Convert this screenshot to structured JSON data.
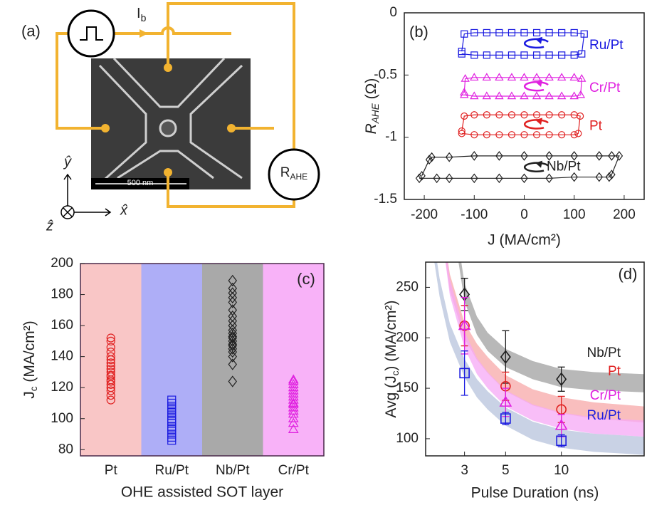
{
  "diagram": {
    "panel_label": "(a)",
    "current": {
      "main": "I",
      "sub": "b"
    },
    "resistor": {
      "main": "R",
      "sub": "AHE"
    },
    "scale_bar": "500 nm",
    "axes": {
      "y": "ŷ",
      "x": "x̂",
      "z": "ẑ"
    }
  },
  "chart_data": [
    {
      "type": "line",
      "panel_label": "(b)",
      "y_label": {
        "main": "R",
        "sub": "AHE",
        "rest": " (Ω)"
      },
      "x_label": "J (MA/cm²)",
      "xlim": [
        -240,
        240
      ],
      "xticks": [
        -200,
        -100,
        0,
        100,
        200
      ],
      "ylim": [
        -1.5,
        0
      ],
      "yticks": [
        -1.5,
        -1,
        -0.5,
        0
      ],
      "series": [
        {
          "name": "Ru/Pt",
          "color": "#1a1ae0",
          "marker": "square",
          "x": [
            -125,
            -100,
            -75,
            -50,
            -25,
            0,
            25,
            50,
            75,
            100,
            115,
            120,
            100,
            75,
            50,
            25,
            0,
            -25,
            -50,
            -75,
            -100,
            -120,
            -125
          ],
          "values": [
            -0.33,
            -0.34,
            -0.34,
            -0.34,
            -0.34,
            -0.34,
            -0.34,
            -0.34,
            -0.34,
            -0.34,
            -0.33,
            -0.17,
            -0.16,
            -0.16,
            -0.16,
            -0.16,
            -0.16,
            -0.16,
            -0.16,
            -0.16,
            -0.16,
            -0.17,
            -0.31
          ]
        },
        {
          "name": "Cr/Pt",
          "color": "#e020e0",
          "marker": "triangle",
          "x": [
            -120,
            -100,
            -75,
            -50,
            -25,
            0,
            25,
            50,
            75,
            100,
            113,
            115,
            100,
            75,
            50,
            25,
            0,
            -25,
            -50,
            -75,
            -100,
            -118,
            -120
          ],
          "values": [
            -0.66,
            -0.67,
            -0.67,
            -0.67,
            -0.67,
            -0.67,
            -0.67,
            -0.67,
            -0.67,
            -0.67,
            -0.66,
            -0.53,
            -0.52,
            -0.52,
            -0.52,
            -0.52,
            -0.52,
            -0.52,
            -0.52,
            -0.52,
            -0.52,
            -0.53,
            -0.64
          ]
        },
        {
          "name": "Pt",
          "color": "#e02020",
          "marker": "circle",
          "x": [
            -125,
            -100,
            -75,
            -50,
            -25,
            0,
            25,
            50,
            75,
            100,
            108,
            112,
            100,
            75,
            50,
            25,
            0,
            -25,
            -50,
            -75,
            -100,
            -120,
            -125
          ],
          "values": [
            -0.97,
            -0.98,
            -0.98,
            -0.98,
            -0.98,
            -0.98,
            -0.98,
            -0.98,
            -0.98,
            -0.98,
            -0.97,
            -0.83,
            -0.82,
            -0.82,
            -0.82,
            -0.82,
            -0.82,
            -0.82,
            -0.82,
            -0.82,
            -0.82,
            -0.83,
            -0.95
          ]
        },
        {
          "name": "Nb/Pt",
          "color": "#202020",
          "marker": "diamond",
          "x": [
            -210,
            -175,
            -150,
            -100,
            -50,
            0,
            50,
            100,
            150,
            170,
            175,
            190,
            175,
            150,
            100,
            50,
            0,
            -50,
            -100,
            -150,
            -185,
            -190,
            -205
          ],
          "values": [
            -1.33,
            -1.33,
            -1.33,
            -1.33,
            -1.33,
            -1.33,
            -1.33,
            -1.32,
            -1.32,
            -1.32,
            -1.3,
            -1.15,
            -1.15,
            -1.15,
            -1.15,
            -1.15,
            -1.15,
            -1.15,
            -1.15,
            -1.16,
            -1.16,
            -1.18,
            -1.31
          ]
        }
      ]
    },
    {
      "type": "strip",
      "panel_label": "(c)",
      "y_label": {
        "main": "J",
        "sub": "c",
        "rest": " (MA/cm²)"
      },
      "x_label": "OHE assisted SOT layer",
      "categories": [
        "Pt",
        "Ru/Pt",
        "Nb/Pt",
        "Cr/Pt"
      ],
      "colors": [
        "#e02020",
        "#1a1ae0",
        "#202020",
        "#e020e0"
      ],
      "markers": [
        "circle",
        "square",
        "diamond",
        "triangle"
      ],
      "band_colors": [
        "#f9c6c6",
        "#aeaef7",
        "#a9a9a9",
        "#f8b2f8"
      ],
      "ylim": [
        76,
        200
      ],
      "yticks": [
        80,
        100,
        120,
        140,
        160,
        180,
        200
      ],
      "values": [
        [
          112,
          115,
          118,
          120,
          122,
          124,
          125,
          127,
          128,
          130,
          132,
          134,
          136,
          138,
          140,
          143,
          146,
          150,
          152
        ],
        [
          86,
          88,
          90,
          92,
          94,
          95,
          97,
          98,
          99,
          100,
          102,
          104,
          106,
          108,
          110,
          112
        ],
        [
          124,
          135,
          140,
          143,
          145,
          147,
          148,
          150,
          152,
          153,
          155,
          157,
          160,
          163,
          166,
          170,
          175,
          178,
          181,
          184,
          189
        ],
        [
          93,
          97,
          100,
          103,
          105,
          107,
          109,
          110,
          112,
          114,
          116,
          118,
          120,
          122,
          124,
          125
        ]
      ]
    },
    {
      "type": "errorbar",
      "panel_label": "(d)",
      "y_label": {
        "main": "Avg (J",
        "sub": "c",
        "rest": ") (MA/cm²)"
      },
      "x_label": "Pulse Duration (ns)",
      "xscale": "log",
      "xlim": [
        1.85,
        28
      ],
      "xticks": [
        3,
        5,
        10
      ],
      "ylim": [
        83,
        275
      ],
      "yticks": [
        100,
        150,
        200,
        250
      ],
      "series": [
        {
          "name": "Nb/Pt",
          "color": "#202020",
          "marker": "diamond",
          "band_color": "#a0a0a0",
          "x": [
            3,
            5,
            10
          ],
          "values": [
            243,
            181,
            159
          ],
          "errors": [
            16,
            26,
            12
          ],
          "band_x": [
            2.7,
            3,
            3.5,
            4,
            5,
            7,
            10,
            15,
            28
          ],
          "band": [
            300,
            245,
            212,
            196,
            180,
            168,
            160,
            157,
            155
          ],
          "band_halfwidth": 9
        },
        {
          "name": "Pt",
          "color": "#e02020",
          "marker": "circle",
          "band_color": "#f7a8a8",
          "x": [
            3,
            5,
            10
          ],
          "values": [
            212,
            152,
            129
          ],
          "errors": [
            20,
            14,
            13
          ],
          "band_x": [
            2.3,
            2.5,
            3,
            3.5,
            4,
            5,
            7,
            10,
            15,
            28
          ],
          "band": [
            300,
            255,
            207,
            186,
            173,
            155,
            141,
            133,
            128,
            124
          ],
          "band_halfwidth": 8
        },
        {
          "name": "Cr/Pt",
          "color": "#e020e0",
          "marker": "triangle",
          "band_color": "#f5a8f5",
          "x": [
            3,
            5,
            10
          ],
          "values": [
            212,
            136,
            113
          ],
          "errors": [
            28,
            14,
            11
          ],
          "band_x": [
            2.3,
            2.5,
            3,
            3.5,
            4,
            5,
            7,
            10,
            15,
            28
          ],
          "band": [
            300,
            250,
            198,
            172,
            158,
            140,
            126,
            118,
            113,
            110
          ],
          "band_halfwidth": 8
        },
        {
          "name": "Ru/Pt",
          "color": "#1a1ae0",
          "marker": "square",
          "band_color": "#b7c3dc",
          "x": [
            3,
            5,
            10
          ],
          "values": [
            165,
            120,
            98
          ],
          "errors": [
            22,
            6,
            6
          ],
          "band_x": [
            2,
            2.2,
            2.5,
            3,
            3.5,
            4,
            5,
            7,
            10,
            15,
            28
          ],
          "band": [
            300,
            250,
            205,
            170,
            150,
            138,
            122,
            108,
            100,
            96,
            93
          ],
          "band_halfwidth": 9
        }
      ]
    }
  ]
}
